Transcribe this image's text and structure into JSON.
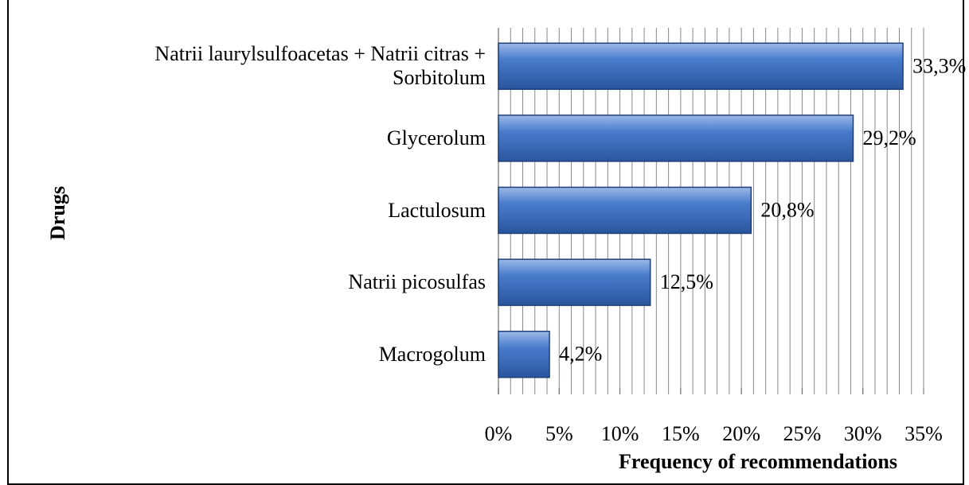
{
  "chart_data": {
    "type": "hbar",
    "categories": [
      "Natrii laurylsulfoacetas + Natrii citras + Sorbitolum",
      "Glycerolum",
      "Lactulosum",
      "Natrii picosulfas",
      "Macrogolum"
    ],
    "values": [
      33.3,
      29.2,
      20.8,
      12.5,
      4.2
    ],
    "value_labels": [
      "33,3%",
      "29,2%",
      "20,8%",
      "12,5%",
      "4,2%"
    ],
    "color": "#3f6fc0",
    "xlim": [
      0,
      35
    ],
    "xticks": [
      {
        "value": 0,
        "label": "0%"
      },
      {
        "value": 5,
        "label": "5%"
      },
      {
        "value": 10,
        "label": "10%"
      },
      {
        "value": 15,
        "label": "15%"
      },
      {
        "value": 20,
        "label": "20%"
      },
      {
        "value": 25,
        "label": "25%"
      },
      {
        "value": 30,
        "label": "30%"
      },
      {
        "value": 35,
        "label": "35%"
      }
    ],
    "xticks_minor": [
      0,
      1,
      2,
      3,
      4,
      5,
      6,
      7,
      8,
      9,
      10,
      11,
      12,
      13,
      14,
      15,
      16,
      17,
      18,
      19,
      20,
      21,
      22,
      23,
      24,
      25,
      26,
      27,
      28,
      29,
      30,
      31,
      32,
      33,
      34,
      35
    ],
    "grid": true,
    "xlabel": "Frequency of recommendations",
    "ylabel": "Drugs"
  }
}
